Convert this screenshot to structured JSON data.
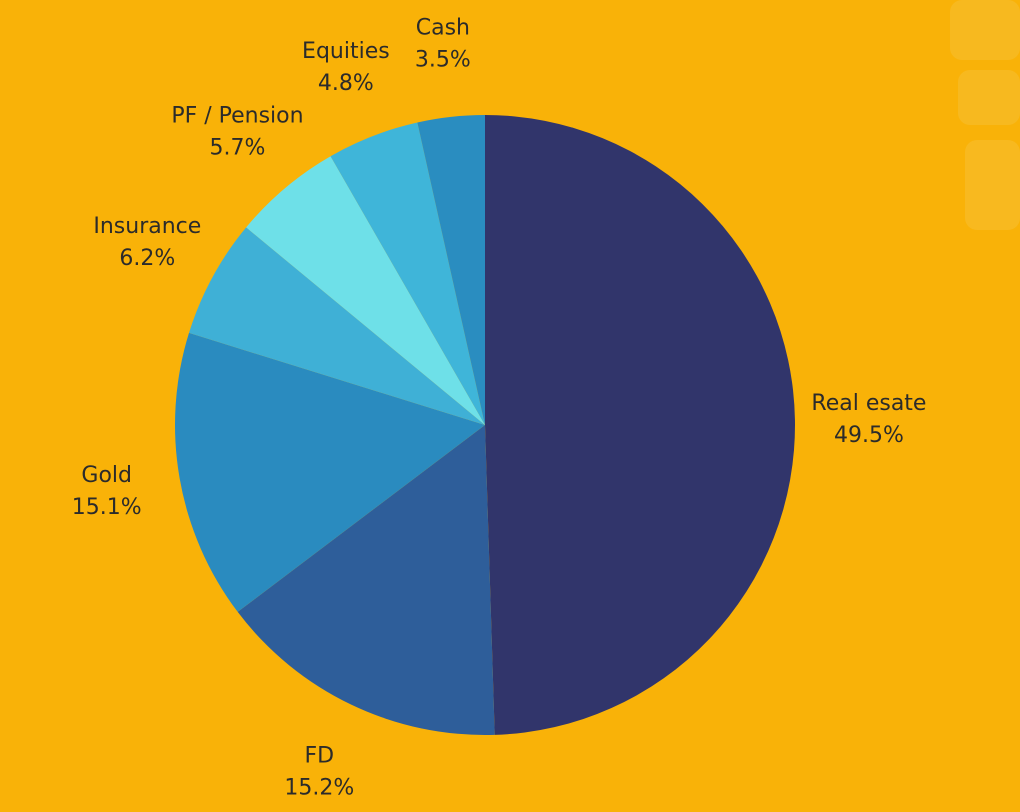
{
  "chart_data": {
    "type": "pie",
    "categories": [
      "Real esate",
      "FD",
      "Gold",
      "Insurance",
      "PF / Pension",
      "Equities",
      "Cash"
    ],
    "values": [
      49.5,
      15.2,
      15.1,
      6.2,
      5.7,
      4.8,
      3.5
    ],
    "value_labels": [
      "49.5%",
      "15.2%",
      "15.1%",
      "6.2%",
      "5.7%",
      "4.8%",
      "3.5%"
    ],
    "colors": [
      "#31356b",
      "#2e5e9a",
      "#2a8bbf",
      "#3fb0d6",
      "#6ee0e8",
      "#3fb5d9",
      "#2a8dc0"
    ]
  }
}
